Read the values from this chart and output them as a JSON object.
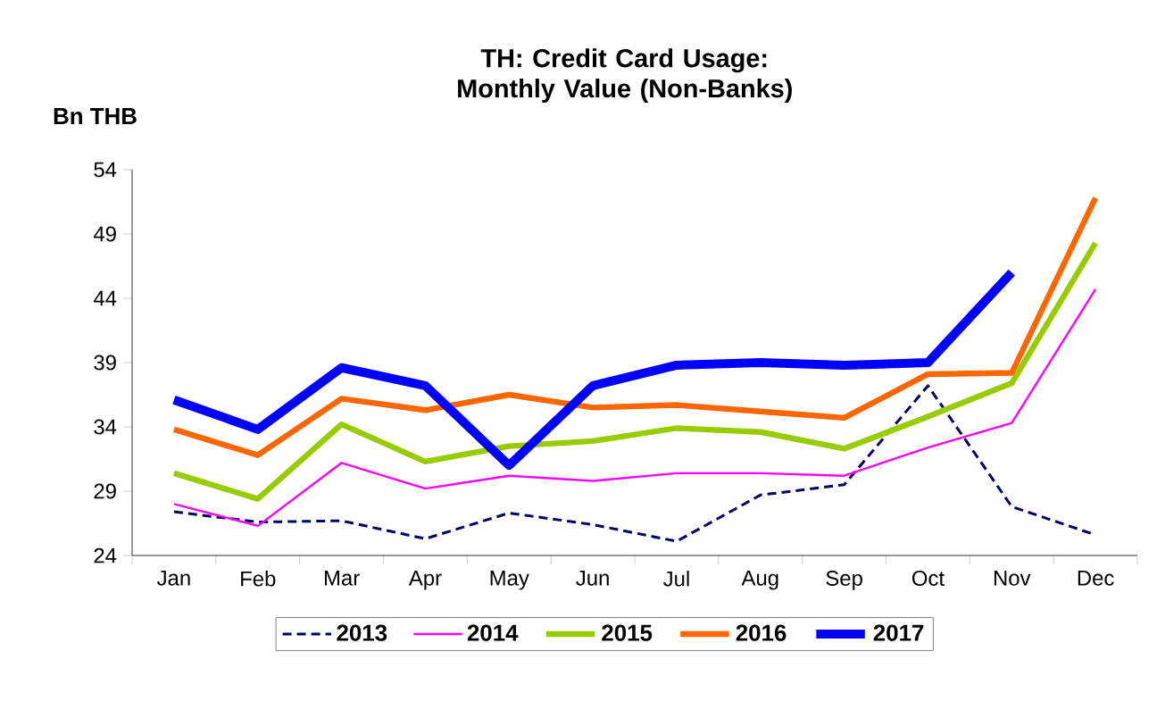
{
  "chart_data": {
    "type": "line",
    "title": "TH: Credit Card Usage: Monthly Value (Non-Banks)",
    "ylabel": "Bn THB",
    "categories": [
      "Jan",
      "Feb",
      "Mar",
      "Apr",
      "May",
      "Jun",
      "Jul",
      "Aug",
      "Sep",
      "Oct",
      "Nov",
      "Dec"
    ],
    "ylim": [
      24,
      54
    ],
    "yticks": [
      24,
      29,
      34,
      39,
      44,
      49,
      54
    ],
    "legend": "bottom",
    "series": [
      {
        "name": "2013",
        "color": "#000066",
        "line_style": "dashed",
        "values": [
          27.4,
          26.6,
          26.7,
          25.3,
          27.3,
          26.4,
          25.1,
          28.7,
          29.5,
          37.2,
          27.8,
          25.6
        ]
      },
      {
        "name": "2014",
        "color": "#ff00ff",
        "line_style": "solid",
        "values": [
          28.0,
          26.3,
          31.2,
          29.2,
          30.2,
          29.8,
          30.4,
          30.4,
          30.2,
          32.4,
          34.3,
          44.7
        ]
      },
      {
        "name": "2015",
        "color": "#99cc00",
        "line_style": "solid",
        "values": [
          30.4,
          28.4,
          34.2,
          31.3,
          32.5,
          32.9,
          33.9,
          33.6,
          32.3,
          34.8,
          37.4,
          48.3
        ]
      },
      {
        "name": "2016",
        "color": "#ff6600",
        "line_style": "solid",
        "values": [
          33.8,
          31.8,
          36.2,
          35.3,
          36.5,
          35.5,
          35.7,
          35.2,
          34.7,
          38.1,
          38.2,
          51.8
        ]
      },
      {
        "name": "2017",
        "color": "#0000ff",
        "line_style": "solid",
        "values": [
          36.1,
          33.8,
          38.6,
          37.2,
          31.0,
          37.2,
          38.8,
          39.0,
          38.8,
          39.0,
          46.0,
          null
        ]
      }
    ]
  }
}
